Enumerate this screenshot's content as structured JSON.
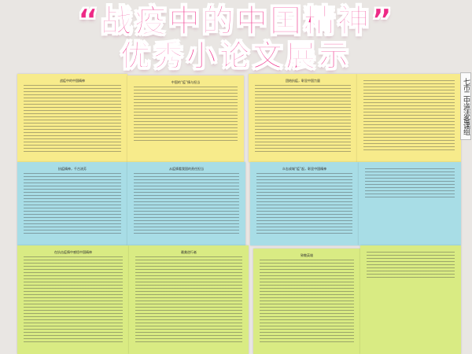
{
  "banner": {
    "line1": "“战疫中的中国精神”",
    "line2": "优秀小论文展示"
  },
  "side_label": "七市二中道法备课组",
  "sheets": [
    {
      "row": 0,
      "color": "#f7eb8b",
      "title": "战疫中的中国精神"
    },
    {
      "row": 0,
      "color": "#f7eb8b",
      "title": "中国的“疫”情与担当"
    },
    {
      "row": 0,
      "color": "#f7eb8b",
      "title": "团结抗疫，彰显中国力量"
    },
    {
      "row": 0,
      "color": "#f7eb8b",
      "title": ""
    },
    {
      "row": 1,
      "color": "#a8dde6",
      "title": "抗疫精神，千古流芳"
    },
    {
      "row": 1,
      "color": "#a8dde6",
      "title": "从疫情看我国的责任担当"
    },
    {
      "row": 1,
      "color": "#a8dde6",
      "title": "众志成城“疫”起，彰显中国精神"
    },
    {
      "row": 1,
      "color": "#a8dde6",
      "title": ""
    },
    {
      "row": 2,
      "color": "#d9eb83",
      "title": "在抗击疫情中感悟中国精神"
    },
    {
      "row": 2,
      "color": "#d9eb83",
      "title": "最美逆行者"
    },
    {
      "row": 2,
      "color": "#d9eb83",
      "title": "致敬英雄"
    },
    {
      "row": 2,
      "color": "#d9eb83",
      "title": ""
    }
  ]
}
